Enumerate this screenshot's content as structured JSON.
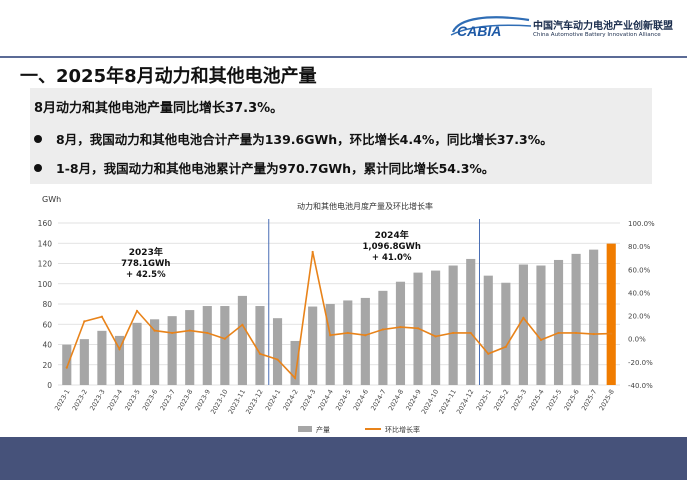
{
  "logo": {
    "brand": "CABIA",
    "name_cn": "中国汽车动力电池产业创新联盟",
    "name_en": "China Automotive Battery Innovation Alliance"
  },
  "page": {
    "title": "一、2025年8月动力和其他电池产量"
  },
  "summary": {
    "headline": "8月动力和其他电池产量同比增长37.3%。",
    "bullets": [
      "8月，我国动力和其他电池合计产量为139.6GWh，环比增长4.4%，同比增长37.3%。",
      "1-8月，我国动力和其他电池累计产量为970.7GWh，累计同比增长54.3%。"
    ]
  },
  "colors": {
    "bar": "#a6a6a6",
    "bar_highlight": "#f07c00",
    "line": "#e8831a",
    "divider": "#4a6fb5",
    "footer": "#46527a",
    "title_line": "#5b6b96"
  },
  "chart_data": {
    "type": "bar",
    "title": "动力和其他电池月度产量及环比增长率",
    "y_unit": "GWh",
    "ylim": [
      0,
      160
    ],
    "y_ticks": [
      0,
      20,
      40,
      60,
      80,
      100,
      120,
      140,
      160
    ],
    "y2lim": [
      -40,
      100
    ],
    "y2_ticks": [
      "-40.0%",
      "-20.0%",
      "0.0%",
      "20.0%",
      "40.0%",
      "60.0%",
      "80.0%",
      "100.0%"
    ],
    "y2_tick_values": [
      -40,
      -20,
      0,
      20,
      40,
      60,
      80,
      100
    ],
    "grid": true,
    "legend_position": "bottom",
    "categories": [
      "2023-1",
      "2023-2",
      "2023-3",
      "2023-4",
      "2023-5",
      "2023-6",
      "2023-7",
      "2023-8",
      "2023-9",
      "2023-10",
      "2023-11",
      "2023-12",
      "2024-1",
      "2024-2",
      "2024-3",
      "2024-4",
      "2024-5",
      "2024-6",
      "2024-7",
      "2024-8",
      "2024-9",
      "2024-10",
      "2024-11",
      "2024-12",
      "2025-1",
      "2025-2",
      "2025-3",
      "2025-4",
      "2025-5",
      "2025-6",
      "2025-7",
      "2025-8"
    ],
    "series": [
      {
        "name": "产量",
        "axis": "left",
        "values": [
          39.8,
          45.3,
          53.5,
          48.5,
          61.4,
          64.9,
          68.0,
          74.0,
          78.0,
          78.0,
          88.0,
          78.0,
          66.0,
          43.5,
          77.5,
          80.0,
          83.5,
          86.0,
          93.0,
          102.0,
          111.0,
          113.0,
          118.0,
          124.5,
          108.0,
          101.0,
          119.0,
          118.0,
          123.5,
          129.5,
          133.7,
          139.6
        ]
      },
      {
        "name": "环比增长率",
        "axis": "right",
        "values": [
          -25,
          15,
          19,
          -9,
          24,
          7,
          5,
          7,
          5,
          0,
          12,
          -13,
          -18,
          -34,
          75,
          3,
          5,
          3,
          8,
          10,
          9,
          2,
          5,
          5,
          -13,
          -7,
          18,
          -1,
          5,
          5,
          4,
          4.4
        ]
      }
    ],
    "annotations": [
      {
        "year": "2023年",
        "total": "778.1GWh",
        "growth": "+ 42.5%"
      },
      {
        "year": "2024年",
        "total": "1,096.8GWh",
        "growth": "+ 41.0%"
      }
    ],
    "year_dividers_after": [
      "2023-12",
      "2024-12"
    ],
    "highlight_last_bar": true
  }
}
